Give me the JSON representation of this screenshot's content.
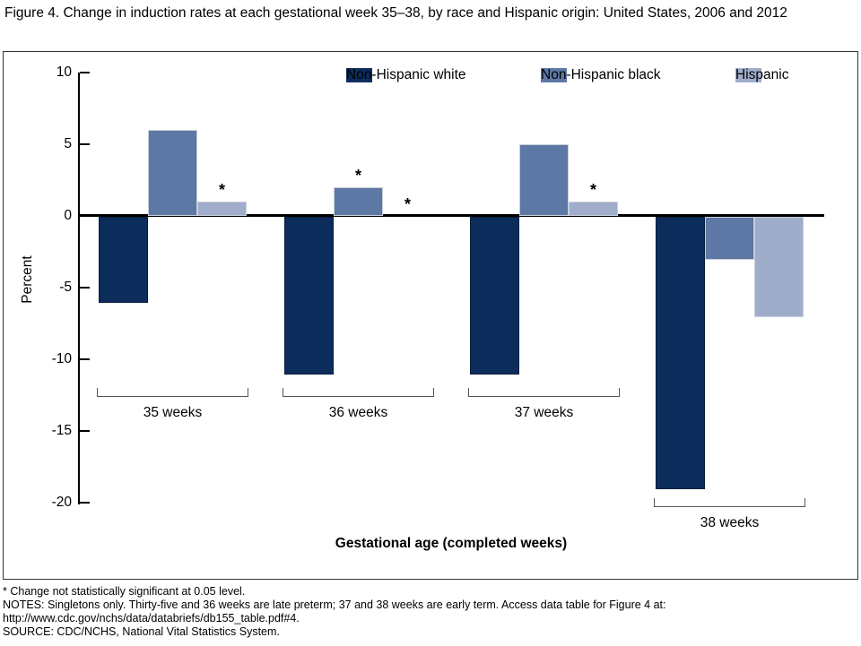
{
  "title": "Figure 4. Change in induction rates at each gestational week 35–38, by race and Hispanic origin: United States, 2006 and 2012",
  "chart_data": {
    "type": "bar",
    "categories": [
      "35 weeks",
      "36 weeks",
      "37 weeks",
      "38 weeks"
    ],
    "series": [
      {
        "name": "Non-Hispanic white",
        "color": "#0c2d5c",
        "border": "#071c3a",
        "values": [
          -6,
          -11,
          -11,
          -19
        ],
        "not_significant": [
          false,
          false,
          false,
          false
        ]
      },
      {
        "name": "Non-Hispanic black",
        "color": "#5d78a5",
        "border": "#c9cedb",
        "values": [
          6,
          2,
          5,
          -3
        ],
        "not_significant": [
          false,
          true,
          false,
          false
        ]
      },
      {
        "name": "Hispanic",
        "color": "#9fadcb",
        "border": "#c9cedb",
        "values": [
          1,
          0,
          1,
          -7
        ],
        "not_significant": [
          true,
          true,
          true,
          false
        ]
      }
    ],
    "title": "",
    "xlabel": "Gestational age (completed weeks)",
    "ylabel": "Percent",
    "ylim": [
      -20,
      10
    ],
    "yticks": [
      10,
      5,
      0,
      -5,
      -10,
      -15,
      -20
    ],
    "significance_marker": "*",
    "legend_position": "top",
    "grid": false
  },
  "footnotes": {
    "significance": "* Change not statistically significant at 0.05 level.",
    "notes": "NOTES: Singletons only. Thirty-five and 36 weeks are late preterm; 37 and 38 weeks are early term. Access data table for Figure 4 at: http://www.cdc.gov/nchs/data/databriefs/db155_table.pdf#4.",
    "source": "SOURCE: CDC/NCHS, National Vital Statistics System."
  }
}
